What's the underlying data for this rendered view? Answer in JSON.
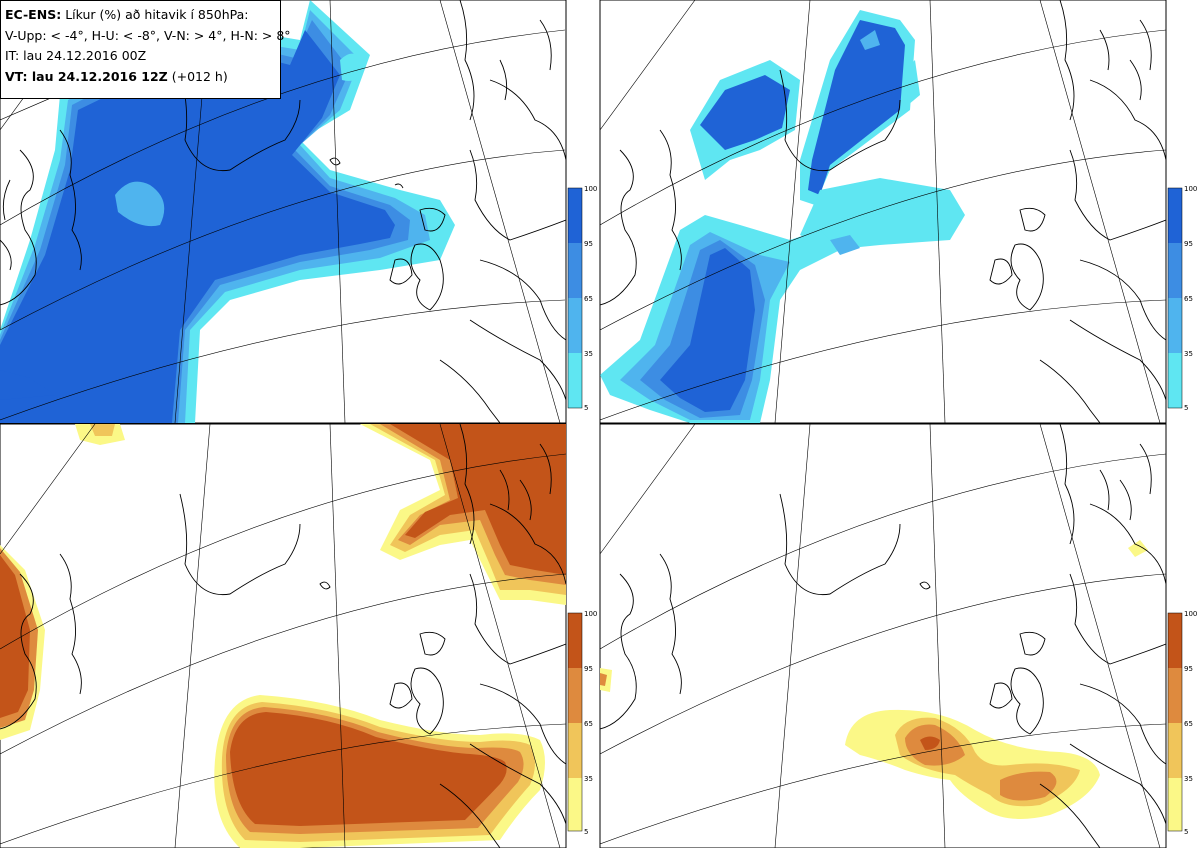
{
  "header": {
    "model": "EC-ENS:",
    "title": "Líkur (%) að hitavik í 850hPa:",
    "legend_text": "V-Upp: < -4°, H-U: < -8°, V-N: > 4°, H-N: > 8°",
    "initial_time": "IT: lau 24.12.2016 00Z",
    "valid_label": "VT: lau 24.12.2016 12Z",
    "lead_time": "(+012 h)"
  },
  "colorbars": {
    "cold_levels": [
      "100",
      "95",
      "65",
      "35",
      "5"
    ],
    "warm_levels": [
      "100",
      "95",
      "65",
      "35",
      "5"
    ],
    "cold_colors": [
      "#1f63d6",
      "#3d8de3",
      "#4fb4ee",
      "#5fe6f2"
    ],
    "warm_colors": [
      "#c35419",
      "#de8a3e",
      "#f0c55a",
      "#fbf887"
    ]
  },
  "panels": [
    {
      "name": "cold-anomaly-4",
      "palette": "cold"
    },
    {
      "name": "cold-anomaly-8",
      "palette": "cold"
    },
    {
      "name": "warm-anomaly-4",
      "palette": "warm"
    },
    {
      "name": "warm-anomaly-8",
      "palette": "warm"
    }
  ],
  "style": {
    "map_background": "#ffffff",
    "coastline": "#000000",
    "grid": "#000000"
  }
}
